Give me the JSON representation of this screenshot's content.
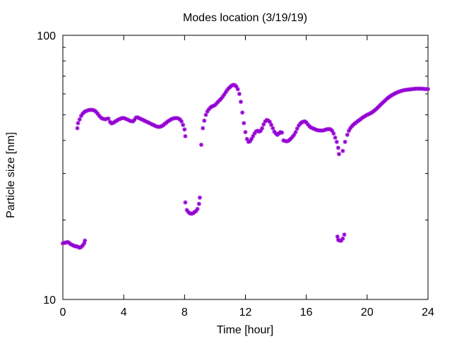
{
  "chart_data": {
    "type": "scatter",
    "title": "Modes location (3/19/19)",
    "xlabel": "Time [hour]",
    "ylabel": "Particle size [nm]",
    "xlim": [
      0,
      24
    ],
    "ylim": [
      10,
      100
    ],
    "yscale": "log",
    "xticks": [
      0,
      4,
      8,
      12,
      16,
      20,
      24
    ],
    "xtick_labels": [
      "0",
      "4",
      "8",
      "12",
      "16",
      "20",
      "24"
    ],
    "yticks": [
      10,
      100
    ],
    "ytick_labels": [
      "10",
      "100"
    ],
    "grid": false,
    "marker_color": "#9400d3",
    "series": [
      {
        "points": [
          [
            0.0,
            16.3
          ],
          [
            0.1,
            16.4
          ],
          [
            0.2,
            16.4
          ],
          [
            0.3,
            16.5
          ],
          [
            0.4,
            16.4
          ],
          [
            0.5,
            16.2
          ],
          [
            0.6,
            16.1
          ],
          [
            0.7,
            16.0
          ],
          [
            0.8,
            15.9
          ],
          [
            0.9,
            15.9
          ],
          [
            1.0,
            15.8
          ],
          [
            1.1,
            15.7
          ],
          [
            1.2,
            15.8
          ],
          [
            1.3,
            16.0
          ],
          [
            1.4,
            16.3
          ],
          [
            1.45,
            16.7
          ],
          [
            0.95,
            44.5
          ],
          [
            1.0,
            46.5
          ],
          [
            1.1,
            48.0
          ],
          [
            1.2,
            49.5
          ],
          [
            1.3,
            50.5
          ],
          [
            1.4,
            51.2
          ],
          [
            1.5,
            51.6
          ],
          [
            1.6,
            51.9
          ],
          [
            1.7,
            52.1
          ],
          [
            1.8,
            52.2
          ],
          [
            1.9,
            52.2
          ],
          [
            2.0,
            52.1
          ],
          [
            2.1,
            51.8
          ],
          [
            2.2,
            51.2
          ],
          [
            2.3,
            50.4
          ],
          [
            2.4,
            49.5
          ],
          [
            2.5,
            48.8
          ],
          [
            2.6,
            48.4
          ],
          [
            2.7,
            48.2
          ],
          [
            2.8,
            48.1
          ],
          [
            2.9,
            48.3
          ],
          [
            3.0,
            48.4
          ],
          [
            3.1,
            47.0
          ],
          [
            3.2,
            46.4
          ],
          [
            3.3,
            46.6
          ],
          [
            3.4,
            47.0
          ],
          [
            3.5,
            47.4
          ],
          [
            3.6,
            47.8
          ],
          [
            3.7,
            48.1
          ],
          [
            3.8,
            48.4
          ],
          [
            3.9,
            48.6
          ],
          [
            4.0,
            48.6
          ],
          [
            4.1,
            48.4
          ],
          [
            4.2,
            48.1
          ],
          [
            4.3,
            47.8
          ],
          [
            4.4,
            47.5
          ],
          [
            4.5,
            47.3
          ],
          [
            4.6,
            47.2
          ],
          [
            4.7,
            47.8
          ],
          [
            4.8,
            48.8
          ],
          [
            4.9,
            48.9
          ],
          [
            5.0,
            48.6
          ],
          [
            5.1,
            48.3
          ],
          [
            5.2,
            48.0
          ],
          [
            5.3,
            47.7
          ],
          [
            5.4,
            47.4
          ],
          [
            5.5,
            47.1
          ],
          [
            5.6,
            46.8
          ],
          [
            5.7,
            46.5
          ],
          [
            5.8,
            46.2
          ],
          [
            5.9,
            45.9
          ],
          [
            6.0,
            45.6
          ],
          [
            6.1,
            45.3
          ],
          [
            6.2,
            45.1
          ],
          [
            6.3,
            45.0
          ],
          [
            6.4,
            45.1
          ],
          [
            6.5,
            45.3
          ],
          [
            6.6,
            45.7
          ],
          [
            6.7,
            46.2
          ],
          [
            6.8,
            46.7
          ],
          [
            6.9,
            47.2
          ],
          [
            7.0,
            47.6
          ],
          [
            7.1,
            48.0
          ],
          [
            7.2,
            48.3
          ],
          [
            7.3,
            48.5
          ],
          [
            7.4,
            48.6
          ],
          [
            7.5,
            48.6
          ],
          [
            7.6,
            48.4
          ],
          [
            7.7,
            48.0
          ],
          [
            7.8,
            47.2
          ],
          [
            7.9,
            45.8
          ],
          [
            8.0,
            44.0
          ],
          [
            8.05,
            41.5
          ],
          [
            8.05,
            23.3
          ],
          [
            8.15,
            21.8
          ],
          [
            8.25,
            21.4
          ],
          [
            8.35,
            21.2
          ],
          [
            8.45,
            21.1
          ],
          [
            8.55,
            21.2
          ],
          [
            8.65,
            21.4
          ],
          [
            8.75,
            21.6
          ],
          [
            8.85,
            22.0
          ],
          [
            8.95,
            23.0
          ],
          [
            9.0,
            24.3
          ],
          [
            9.1,
            38.5
          ],
          [
            9.2,
            44.5
          ],
          [
            9.3,
            47.5
          ],
          [
            9.4,
            50.0
          ],
          [
            9.5,
            51.5
          ],
          [
            9.6,
            52.5
          ],
          [
            9.7,
            53.3
          ],
          [
            9.8,
            53.8
          ],
          [
            9.9,
            54.1
          ],
          [
            10.0,
            54.4
          ],
          [
            10.1,
            55.2
          ],
          [
            10.2,
            56.0
          ],
          [
            10.3,
            56.8
          ],
          [
            10.4,
            57.5
          ],
          [
            10.5,
            58.5
          ],
          [
            10.6,
            59.6
          ],
          [
            10.7,
            60.8
          ],
          [
            10.8,
            62.0
          ],
          [
            10.9,
            63.0
          ],
          [
            11.0,
            63.8
          ],
          [
            11.1,
            64.5
          ],
          [
            11.2,
            64.9
          ],
          [
            11.3,
            64.8
          ],
          [
            11.4,
            64.0
          ],
          [
            11.5,
            62.5
          ],
          [
            11.6,
            60.0
          ],
          [
            11.7,
            56.0
          ],
          [
            11.8,
            51.0
          ],
          [
            11.9,
            46.5
          ],
          [
            12.0,
            43.0
          ],
          [
            12.1,
            40.5
          ],
          [
            12.2,
            39.5
          ],
          [
            12.3,
            39.7
          ],
          [
            12.4,
            40.5
          ],
          [
            12.5,
            41.5
          ],
          [
            12.6,
            42.5
          ],
          [
            12.7,
            43.3
          ],
          [
            12.8,
            43.5
          ],
          [
            12.9,
            43.2
          ],
          [
            13.0,
            43.5
          ],
          [
            13.1,
            44.5
          ],
          [
            13.2,
            46.0
          ],
          [
            13.3,
            47.2
          ],
          [
            13.4,
            47.8
          ],
          [
            13.5,
            47.6
          ],
          [
            13.6,
            47.0
          ],
          [
            13.7,
            45.8
          ],
          [
            13.8,
            44.5
          ],
          [
            13.9,
            43.2
          ],
          [
            14.0,
            42.5
          ],
          [
            14.1,
            42.0
          ],
          [
            14.2,
            42.5
          ],
          [
            14.3,
            43.0
          ],
          [
            14.4,
            42.8
          ],
          [
            14.5,
            40.0
          ],
          [
            14.6,
            39.8
          ],
          [
            14.7,
            39.7
          ],
          [
            14.8,
            39.8
          ],
          [
            14.9,
            40.2
          ],
          [
            15.0,
            40.7
          ],
          [
            15.1,
            41.3
          ],
          [
            15.2,
            42.0
          ],
          [
            15.3,
            43.0
          ],
          [
            15.4,
            44.3
          ],
          [
            15.5,
            45.5
          ],
          [
            15.6,
            46.3
          ],
          [
            15.7,
            46.8
          ],
          [
            15.8,
            47.1
          ],
          [
            15.9,
            47.2
          ],
          [
            16.0,
            46.8
          ],
          [
            16.1,
            46.0
          ],
          [
            16.2,
            45.3
          ],
          [
            16.3,
            44.8
          ],
          [
            16.4,
            44.5
          ],
          [
            16.5,
            44.3
          ],
          [
            16.6,
            44.0
          ],
          [
            16.7,
            43.8
          ],
          [
            16.8,
            43.7
          ],
          [
            16.9,
            43.6
          ],
          [
            17.0,
            43.6
          ],
          [
            17.1,
            43.6
          ],
          [
            17.2,
            43.8
          ],
          [
            17.3,
            44.0
          ],
          [
            17.4,
            44.1
          ],
          [
            17.5,
            44.2
          ],
          [
            17.6,
            44.0
          ],
          [
            17.7,
            43.5
          ],
          [
            17.8,
            42.5
          ],
          [
            17.9,
            41.0
          ],
          [
            18.0,
            39.5
          ],
          [
            18.1,
            37.5
          ],
          [
            18.15,
            35.5
          ],
          [
            18.05,
            17.3
          ],
          [
            18.1,
            16.8
          ],
          [
            18.2,
            16.7
          ],
          [
            18.3,
            16.7
          ],
          [
            18.4,
            17.0
          ],
          [
            18.5,
            17.6
          ],
          [
            18.4,
            36.5
          ],
          [
            18.55,
            39.5
          ],
          [
            18.7,
            42.0
          ],
          [
            18.8,
            43.5
          ],
          [
            18.9,
            44.5
          ],
          [
            19.0,
            45.3
          ],
          [
            19.1,
            45.9
          ],
          [
            19.2,
            46.4
          ],
          [
            19.3,
            46.9
          ],
          [
            19.4,
            47.4
          ],
          [
            19.5,
            47.8
          ],
          [
            19.6,
            48.3
          ],
          [
            19.7,
            48.8
          ],
          [
            19.8,
            49.2
          ],
          [
            19.9,
            49.6
          ],
          [
            20.0,
            50.0
          ],
          [
            20.1,
            50.3
          ],
          [
            20.2,
            50.6
          ],
          [
            20.3,
            51.0
          ],
          [
            20.4,
            51.5
          ],
          [
            20.5,
            52.0
          ],
          [
            20.6,
            52.6
          ],
          [
            20.7,
            53.3
          ],
          [
            20.8,
            54.0
          ],
          [
            20.9,
            54.7
          ],
          [
            21.0,
            55.4
          ],
          [
            21.1,
            56.1
          ],
          [
            21.2,
            56.8
          ],
          [
            21.3,
            57.5
          ],
          [
            21.4,
            58.1
          ],
          [
            21.5,
            58.7
          ],
          [
            21.6,
            59.2
          ],
          [
            21.7,
            59.7
          ],
          [
            21.8,
            60.1
          ],
          [
            21.9,
            60.5
          ],
          [
            22.0,
            60.9
          ],
          [
            22.1,
            61.2
          ],
          [
            22.2,
            61.5
          ],
          [
            22.3,
            61.7
          ],
          [
            22.4,
            61.9
          ],
          [
            22.5,
            62.1
          ],
          [
            22.6,
            62.2
          ],
          [
            22.7,
            62.3
          ],
          [
            22.8,
            62.4
          ],
          [
            22.9,
            62.5
          ],
          [
            23.0,
            62.6
          ],
          [
            23.1,
            62.7
          ],
          [
            23.2,
            62.8
          ],
          [
            23.3,
            62.8
          ],
          [
            23.4,
            62.8
          ],
          [
            23.5,
            62.8
          ],
          [
            23.6,
            62.8
          ],
          [
            23.7,
            62.7
          ],
          [
            23.8,
            62.6
          ],
          [
            23.9,
            62.6
          ],
          [
            24.0,
            62.6
          ]
        ]
      }
    ]
  }
}
